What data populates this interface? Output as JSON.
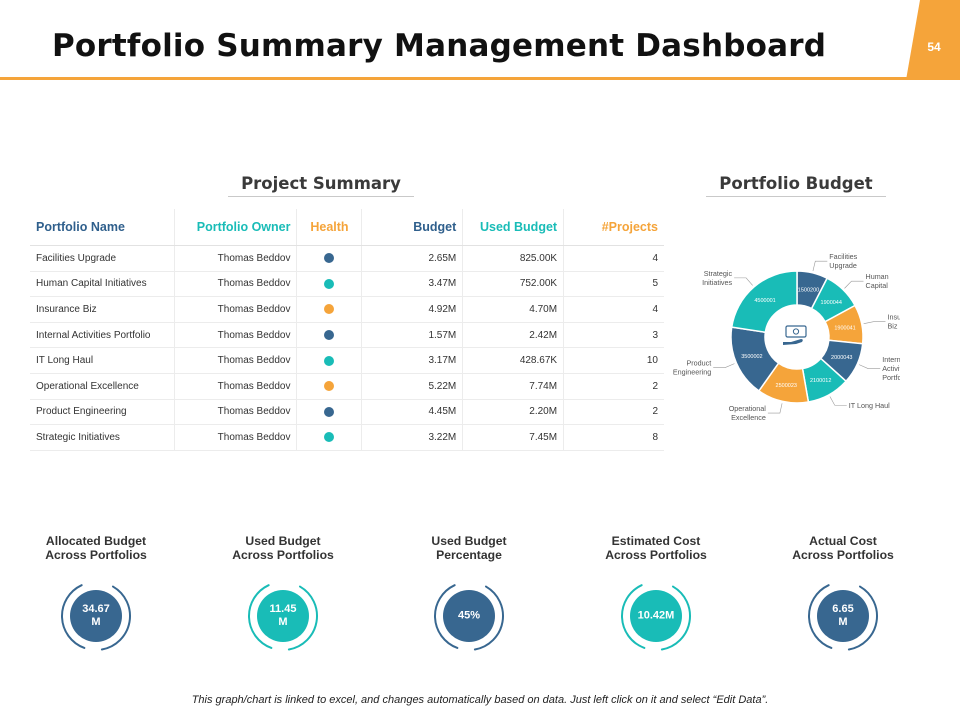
{
  "header": {
    "title": "Portfolio Summary Management Dashboard",
    "page_number": "54"
  },
  "colors": {
    "accent": "#f5a43a",
    "blue": "#386790",
    "teal": "#19bcb7",
    "orange": "#f5a43a",
    "header_blue": "#2f5f8c",
    "header_teal": "#19bcb7"
  },
  "project_summary": {
    "title": "Project Summary",
    "columns": {
      "name": "Portfolio Name",
      "owner": "Portfolio Owner",
      "health": "Health",
      "budget": "Budget",
      "used": "Used Budget",
      "projects": "#Projects"
    },
    "rows": [
      {
        "name": "Facilities Upgrade",
        "owner": "Thomas Beddov",
        "health": "blue",
        "budget": "2.65M",
        "used": "825.00K",
        "projects": "4"
      },
      {
        "name": "Human Capital Initiatives",
        "owner": "Thomas Beddov",
        "health": "teal",
        "budget": "3.47M",
        "used": "752.00K",
        "projects": "5"
      },
      {
        "name": "Insurance Biz",
        "owner": "Thomas Beddov",
        "health": "orange",
        "budget": "4.92M",
        "used": "4.70M",
        "projects": "4"
      },
      {
        "name": "Internal Activities Portfolio",
        "owner": "Thomas Beddov",
        "health": "blue",
        "budget": "1.57M",
        "used": "2.42M",
        "projects": "3"
      },
      {
        "name": "IT Long Haul",
        "owner": "Thomas Beddov",
        "health": "teal",
        "budget": "3.17M",
        "used": "428.67K",
        "projects": "10"
      },
      {
        "name": "Operational Excellence",
        "owner": "Thomas Beddov",
        "health": "orange",
        "budget": "5.22M",
        "used": "7.74M",
        "projects": "2"
      },
      {
        "name": "Product Engineering",
        "owner": "Thomas Beddov",
        "health": "blue",
        "budget": "4.45M",
        "used": "2.20M",
        "projects": "2"
      },
      {
        "name": "Strategic Initiatives",
        "owner": "Thomas Beddov",
        "health": "teal",
        "budget": "3.22M",
        "used": "7.45M",
        "projects": "8"
      }
    ]
  },
  "portfolio_budget": {
    "title": "Portfolio Budget",
    "center_icon": "money-hand-icon"
  },
  "chart_data": {
    "type": "pie",
    "title": "Portfolio Budget",
    "donut": true,
    "categories": [
      "Facilities Upgrade",
      "Human Capital",
      "Insurance Biz",
      "Internal Activities Portfolio",
      "IT Long Haul",
      "Operational Excellence",
      "Product Engineering",
      "Strategic Initiatives"
    ],
    "category_lines": [
      [
        "Facilities",
        "Upgrade"
      ],
      [
        "Human",
        "Capital"
      ],
      [
        "Insurance",
        "Biz"
      ],
      [
        "Internal",
        "Activities",
        "Portfolio"
      ],
      [
        "IT Long Haul"
      ],
      [
        "Operational",
        "Excellence"
      ],
      [
        "Product",
        "Engineering"
      ],
      [
        "Strategic",
        "Initiatives"
      ]
    ],
    "values": [
      1500200,
      1900044,
      1900041,
      2000043,
      2100012,
      2500023,
      3500002,
      4500001
    ],
    "value_labels": [
      "1500200",
      "1900044",
      "1900041",
      "2000043",
      "2100012",
      "2500023",
      "3500002",
      "4500001"
    ],
    "colors": [
      "#386790",
      "#19bcb7",
      "#f5a43a",
      "#386790",
      "#19bcb7",
      "#f5a43a",
      "#386790",
      "#19bcb7"
    ]
  },
  "kpis": [
    {
      "label_line1": "Allocated Budget",
      "label_line2": "Across Portfolios",
      "value_line1": "34.67",
      "value_line2": "M",
      "color": "#386790"
    },
    {
      "label_line1": "Used Budget",
      "label_line2": "Across Portfolios",
      "value_line1": "11.45",
      "value_line2": "M",
      "color": "#19bcb7"
    },
    {
      "label_line1": "Used Budget",
      "label_line2": "Percentage",
      "value_line1": "45%",
      "value_line2": "",
      "color": "#386790"
    },
    {
      "label_line1": "Estimated Cost",
      "label_line2": "Across Portfolios",
      "value_line1": "10.42M",
      "value_line2": "",
      "color": "#19bcb7"
    },
    {
      "label_line1": "Actual Cost",
      "label_line2": "Across Portfolios",
      "value_line1": "6.65",
      "value_line2": "M",
      "color": "#386790"
    }
  ],
  "footer": {
    "note": "This graph/chart is linked to excel, and changes automatically based on data. Just left click on it and select “Edit Data”."
  }
}
